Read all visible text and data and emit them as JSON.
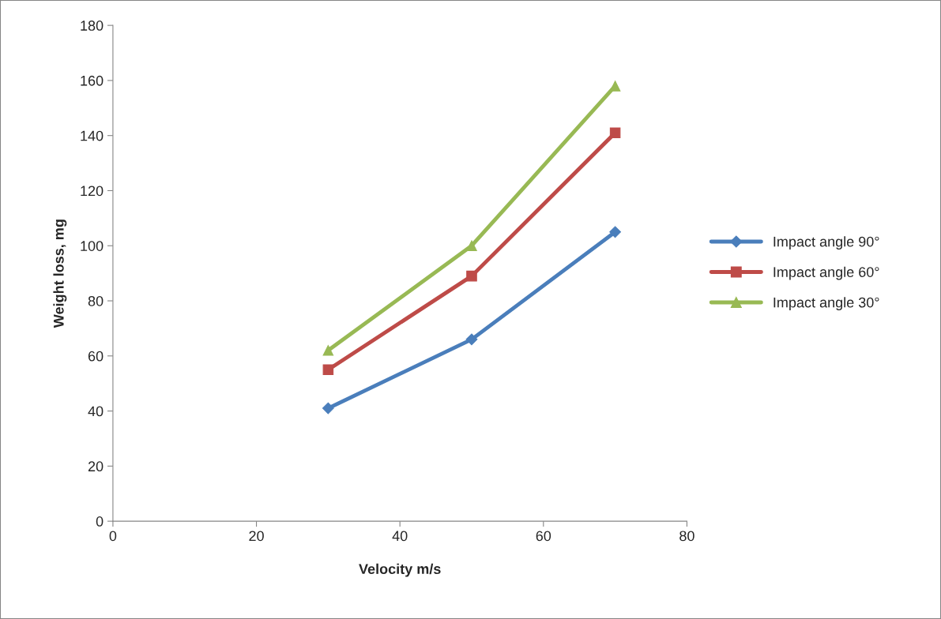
{
  "chart_data": {
    "type": "line",
    "xlabel": "Velocity m/s",
    "ylabel": "Weight loss, mg",
    "x": [
      30,
      50,
      70
    ],
    "series": [
      {
        "name": "Impact angle 90°",
        "color": "#4a7ebb",
        "marker": "diamond",
        "values": [
          41,
          66,
          105
        ]
      },
      {
        "name": "Impact angle 60°",
        "color": "#be4b48",
        "marker": "square",
        "values": [
          55,
          89,
          141
        ]
      },
      {
        "name": "Impact angle 30°",
        "color": "#98b954",
        "marker": "triangle",
        "values": [
          62,
          100,
          158
        ]
      }
    ],
    "xlim": [
      0,
      80
    ],
    "xticks": [
      0,
      20,
      40,
      60,
      80
    ],
    "ylim": [
      0,
      180
    ],
    "yticks": [
      0,
      20,
      40,
      60,
      80,
      100,
      120,
      140,
      160,
      180
    ],
    "grid": false,
    "legend": "right",
    "line_style": "solid"
  }
}
